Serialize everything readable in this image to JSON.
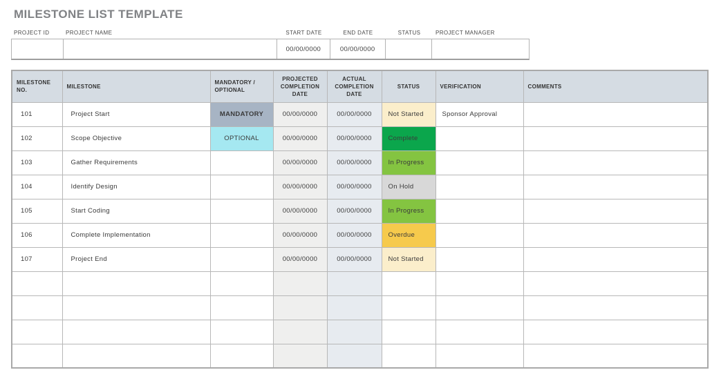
{
  "page": {
    "title": "MILESTONE LIST TEMPLATE"
  },
  "project_info": {
    "project_id": {
      "label": "PROJECT ID",
      "value": ""
    },
    "project_name": {
      "label": "PROJECT NAME",
      "value": ""
    },
    "start_date": {
      "label": "START DATE",
      "value": "00/00/0000"
    },
    "end_date": {
      "label": "END DATE",
      "value": "00/00/0000"
    },
    "status": {
      "label": "STATUS",
      "value": ""
    },
    "project_manager": {
      "label": "PROJECT MANAGER",
      "value": ""
    }
  },
  "milestone_table": {
    "headers": [
      "MILESTONE NO.",
      "MILESTONE",
      "MANDATORY / OPTIONAL",
      "PROJECTED COMPLETION DATE",
      "ACTUAL COMPLETION DATE",
      "STATUS",
      "VERIFICATION",
      "COMMENTS"
    ],
    "rows": [
      {
        "no": "101",
        "milestone": "Project Start",
        "mandatory": "MANDATORY",
        "projected": "00/00/0000",
        "actual": "00/00/0000",
        "status": "Not Started",
        "verification": "Sponsor Approval",
        "comments": ""
      },
      {
        "no": "102",
        "milestone": "Scope Objective",
        "mandatory": "OPTIONAL",
        "projected": "00/00/0000",
        "actual": "00/00/0000",
        "status": "Complete",
        "verification": "",
        "comments": ""
      },
      {
        "no": "103",
        "milestone": "Gather Requirements",
        "mandatory": "",
        "projected": "00/00/0000",
        "actual": "00/00/0000",
        "status": "In Progress",
        "verification": "",
        "comments": ""
      },
      {
        "no": "104",
        "milestone": "Identify Design",
        "mandatory": "",
        "projected": "00/00/0000",
        "actual": "00/00/0000",
        "status": "On Hold",
        "verification": "",
        "comments": ""
      },
      {
        "no": "105",
        "milestone": "Start Coding",
        "mandatory": "",
        "projected": "00/00/0000",
        "actual": "00/00/0000",
        "status": "In Progress",
        "verification": "",
        "comments": ""
      },
      {
        "no": "106",
        "milestone": "Complete Implementation",
        "mandatory": "",
        "projected": "00/00/0000",
        "actual": "00/00/0000",
        "status": "Overdue",
        "verification": "",
        "comments": ""
      },
      {
        "no": "107",
        "milestone": "Project End",
        "mandatory": "",
        "projected": "00/00/0000",
        "actual": "00/00/0000",
        "status": "Not Started",
        "verification": "",
        "comments": ""
      }
    ],
    "empty_row_count": 4
  },
  "colors": {
    "title": "#808285",
    "header_bg": "#d5dce3",
    "projected_col_bg": "#efefee",
    "actual_col_bg": "#e7ebf0",
    "tags": {
      "MANDATORY": "#a7b4c4",
      "OPTIONAL": "#a5e8f1",
      "Not Started": "#fbeecb",
      "Complete": "#0ba64c",
      "In Progress": "#84c441",
      "On Hold": "#d8d8d8",
      "Overdue": "#f6ca4c"
    }
  }
}
